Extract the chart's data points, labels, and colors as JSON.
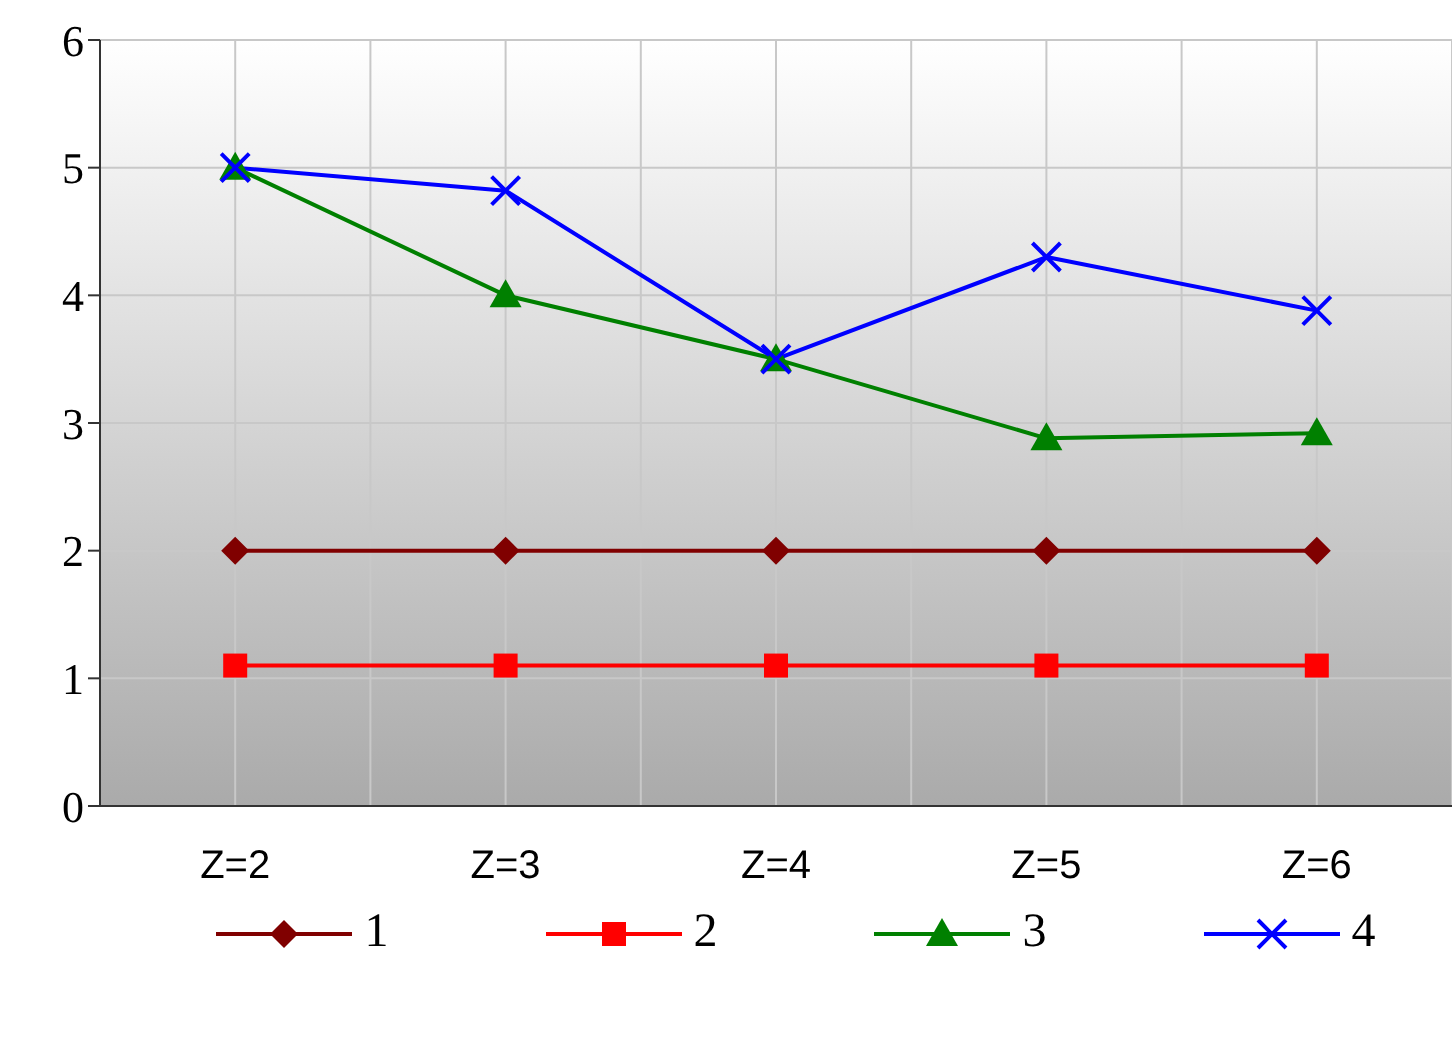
{
  "chart_data": {
    "type": "line",
    "categories": [
      "Z=2",
      "Z=3",
      "Z=4",
      "Z=5",
      "Z=6"
    ],
    "series": [
      {
        "name": "1",
        "color": "#800000",
        "marker": "diamond",
        "values": [
          2,
          2,
          2,
          2,
          2
        ]
      },
      {
        "name": "2",
        "color": "#ff0000",
        "marker": "square",
        "values": [
          1.1,
          1.1,
          1.1,
          1.1,
          1.1
        ]
      },
      {
        "name": "3",
        "color": "#008000",
        "marker": "triangle",
        "values": [
          5,
          4,
          3.5,
          2.88,
          2.92
        ]
      },
      {
        "name": "4",
        "color": "#0000ff",
        "marker": "cross",
        "values": [
          5,
          4.82,
          3.5,
          4.3,
          3.88
        ]
      }
    ],
    "ylim": [
      0,
      6
    ],
    "yticks": [
      0,
      1,
      2,
      3,
      4,
      5,
      6
    ],
    "grid": true,
    "legend": "bottom"
  }
}
